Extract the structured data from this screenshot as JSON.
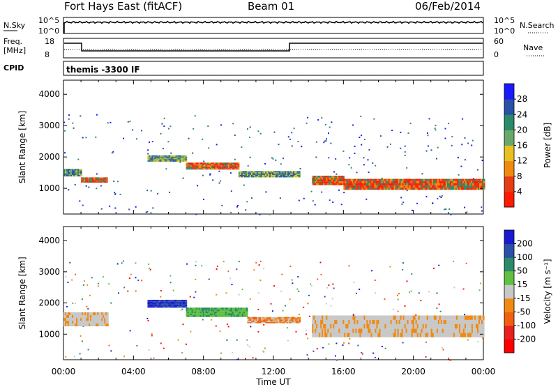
{
  "header": {
    "radar": "Fort Hays East (fitACF)",
    "beam": "Beam 01",
    "date": "06/Feb/2014"
  },
  "strips": {
    "nsky_label": "N.Sky",
    "nsky_top": "10^5",
    "nsky_bottom": "10^0",
    "nsearch_label": "N.Search",
    "nsearch_top": "10^5",
    "nsearch_bottom": "10^0",
    "freq_label_1": "Freq.",
    "freq_label_2": "[MHz]",
    "freq_top": "18",
    "freq_bottom": "8",
    "nave_label": "Nave",
    "nave_top": "60",
    "nave_bottom": "0",
    "cpid_label": "CPID",
    "cpid_value": "themis -3300 IF"
  },
  "chart_data": [
    {
      "type": "heatmap",
      "title": "Power",
      "ylabel": "Slant Range [km]",
      "xlabel": "Time UT",
      "ylim": [
        180,
        4450
      ],
      "xlim": [
        0,
        24
      ],
      "yticks": [
        "1000",
        "2000",
        "3000",
        "4000"
      ],
      "colorbar": {
        "label": "Power [dB]",
        "ticks": [
          "4",
          "8",
          "12",
          "16",
          "20",
          "24",
          "28"
        ],
        "colors": [
          "#1a1aff",
          "#2a50a8",
          "#2a8a6a",
          "#6aa86a",
          "#e8c020",
          "#f08a10",
          "#e83c14",
          "#ff1a00"
        ]
      },
      "bands": [
        {
          "t0": 0.0,
          "t1": 1.0,
          "r0": 1380,
          "r1": 1620,
          "level": "mid"
        },
        {
          "t0": 1.0,
          "t1": 2.5,
          "r0": 1180,
          "r1": 1350,
          "level": "high"
        },
        {
          "t0": 4.8,
          "t1": 7.0,
          "r0": 1850,
          "r1": 2050,
          "level": "mid"
        },
        {
          "t0": 7.0,
          "t1": 10.0,
          "r0": 1600,
          "r1": 1820,
          "level": "high"
        },
        {
          "t0": 10.0,
          "t1": 13.5,
          "r0": 1350,
          "r1": 1550,
          "level": "mid"
        },
        {
          "t0": 14.2,
          "t1": 16.0,
          "r0": 1100,
          "r1": 1400,
          "level": "high"
        },
        {
          "t0": 16.0,
          "t1": 24.0,
          "r0": 950,
          "r1": 1300,
          "level": "high"
        }
      ]
    },
    {
      "type": "heatmap",
      "title": "Velocity",
      "ylabel": "Slant Range [km]",
      "xlabel": "Time UT",
      "ylim": [
        180,
        4450
      ],
      "xlim": [
        0,
        24
      ],
      "yticks": [
        "1000",
        "2000",
        "3000",
        "4000"
      ],
      "xticks": [
        "00:00",
        "04:00",
        "08:00",
        "12:00",
        "16:00",
        "20:00",
        "00:00"
      ],
      "colorbar": {
        "label": "Velocity [m s⁻¹]",
        "ticks": [
          "200",
          "100",
          "50",
          "15",
          "-15",
          "-50",
          "-100",
          "-200"
        ],
        "colors": [
          "#1a1ad0",
          "#2a50a8",
          "#2a8a6a",
          "#60c040",
          "#c8c8c8",
          "#f08a10",
          "#f06010",
          "#e82020",
          "#ff0000"
        ]
      },
      "bands": [
        {
          "t0": 0.0,
          "t1": 2.5,
          "r0": 1250,
          "r1": 1700,
          "level": "gray"
        },
        {
          "t0": 4.8,
          "t1": 7.0,
          "r0": 1850,
          "r1": 2100,
          "level": "blue"
        },
        {
          "t0": 7.0,
          "t1": 10.5,
          "r0": 1550,
          "r1": 1850,
          "level": "green"
        },
        {
          "t0": 10.5,
          "t1": 13.5,
          "r0": 1350,
          "r1": 1550,
          "level": "orange"
        },
        {
          "t0": 14.2,
          "t1": 24.0,
          "r0": 900,
          "r1": 1600,
          "level": "gray"
        }
      ]
    }
  ]
}
